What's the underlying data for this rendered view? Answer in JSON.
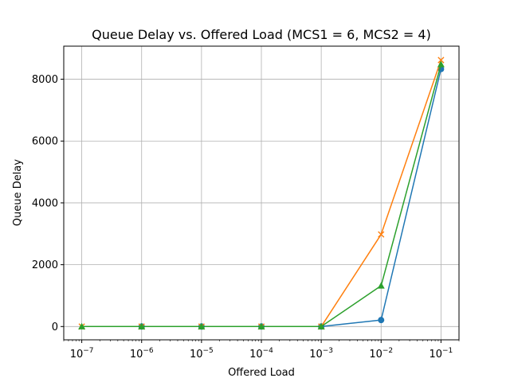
{
  "chart_data": {
    "type": "line",
    "title": "Queue Delay vs. Offered Load (MCS1 = 6, MCS2 = 4)",
    "xlabel": "Offered Load",
    "ylabel": "Queue Delay",
    "xscale": "log",
    "xlim": [
      5e-08,
      0.2
    ],
    "ylim": [
      -430,
      9070
    ],
    "grid": true,
    "x": [
      1e-07,
      1e-06,
      1e-05,
      0.0001,
      0.001,
      0.01,
      0.1
    ],
    "x_ticks": [
      {
        "value": 1e-07,
        "base": "10",
        "exp": "−7"
      },
      {
        "value": 1e-06,
        "base": "10",
        "exp": "−6"
      },
      {
        "value": 1e-05,
        "base": "10",
        "exp": "−5"
      },
      {
        "value": 0.0001,
        "base": "10",
        "exp": "−4"
      },
      {
        "value": 0.001,
        "base": "10",
        "exp": "−3"
      },
      {
        "value": 0.01,
        "base": "10",
        "exp": "−2"
      },
      {
        "value": 0.1,
        "base": "10",
        "exp": "−1"
      }
    ],
    "y_ticks": [
      {
        "value": 0,
        "label": "0"
      },
      {
        "value": 2000,
        "label": "2000"
      },
      {
        "value": 4000,
        "label": "4000"
      },
      {
        "value": 6000,
        "label": "6000"
      },
      {
        "value": 8000,
        "label": "8000"
      }
    ],
    "series": [
      {
        "color": "#1f77b4",
        "marker": "circle",
        "values": [
          null,
          0,
          0,
          0,
          0,
          210,
          8330
        ]
      },
      {
        "color": "#ff7f0e",
        "marker": "x",
        "values": [
          0,
          0,
          0,
          0,
          0,
          2980,
          8620
        ]
      },
      {
        "color": "#2ca02c",
        "marker": "triangle",
        "values": [
          0,
          0,
          0,
          0,
          0,
          1320,
          8480
        ]
      }
    ]
  }
}
